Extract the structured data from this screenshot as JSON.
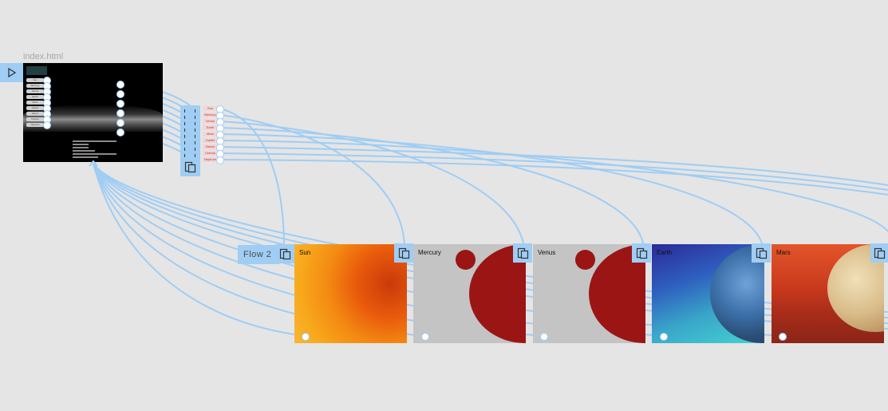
{
  "file": {
    "name": "index.html"
  },
  "flow": {
    "label": "Flow 2"
  },
  "preview": {
    "nav": [
      "Sun",
      "Mercury",
      "Venus",
      "Earth",
      "Mars",
      "Jupiter",
      "Saturn",
      "Uranus",
      "Neptune"
    ]
  },
  "hub": {
    "labels": [
      "Sun",
      "Mercury",
      "Venus",
      "Earth",
      "Mars",
      "Jupiter",
      "Saturn",
      "Uranus",
      "Neptune"
    ]
  },
  "cards": [
    {
      "title": "Sun",
      "theme": "sun"
    },
    {
      "title": "Mercury",
      "theme": "planet-red"
    },
    {
      "title": "Venus",
      "theme": "planet-red"
    },
    {
      "title": "Earth",
      "theme": "earth"
    },
    {
      "title": "Mars",
      "theme": "mars"
    }
  ],
  "icons": {
    "play": "play-icon",
    "copy": "copy-frame-icon"
  },
  "colors": {
    "accent": "#9fcdf4",
    "wire": "#9fcdf4",
    "canvas": "#e5e5e5"
  }
}
